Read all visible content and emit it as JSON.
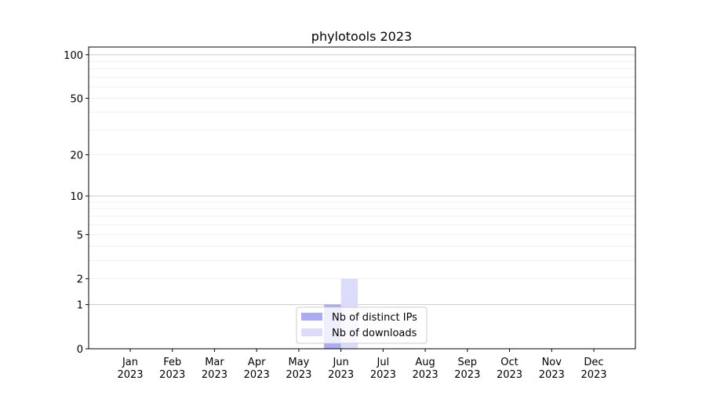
{
  "chart_data": {
    "type": "bar",
    "title": "phylotools 2023",
    "xlabel": "",
    "ylabel": "",
    "yscale": "log(1+y)",
    "ylim": [
      0,
      113
    ],
    "yticks": [
      0,
      1,
      2,
      5,
      10,
      20,
      50,
      100
    ],
    "grid": "y major and minor",
    "categories": [
      "Jan\n2023",
      "Feb\n2023",
      "Mar\n2023",
      "Apr\n2023",
      "May\n2023",
      "Jun\n2023",
      "Jul\n2023",
      "Aug\n2023",
      "Sep\n2023",
      "Oct\n2023",
      "Nov\n2023",
      "Dec\n2023"
    ],
    "series": [
      {
        "name": "Nb of distinct IPs",
        "color": "#aaaaf5",
        "values": [
          0,
          0,
          0,
          0,
          0,
          1,
          0,
          0,
          0,
          0,
          0,
          0
        ]
      },
      {
        "name": "Nb of downloads",
        "color": "#dcdcfa",
        "values": [
          0,
          0,
          0,
          0,
          0,
          2,
          0,
          0,
          0,
          0,
          0,
          0
        ]
      }
    ],
    "legend": "bottom-center"
  }
}
